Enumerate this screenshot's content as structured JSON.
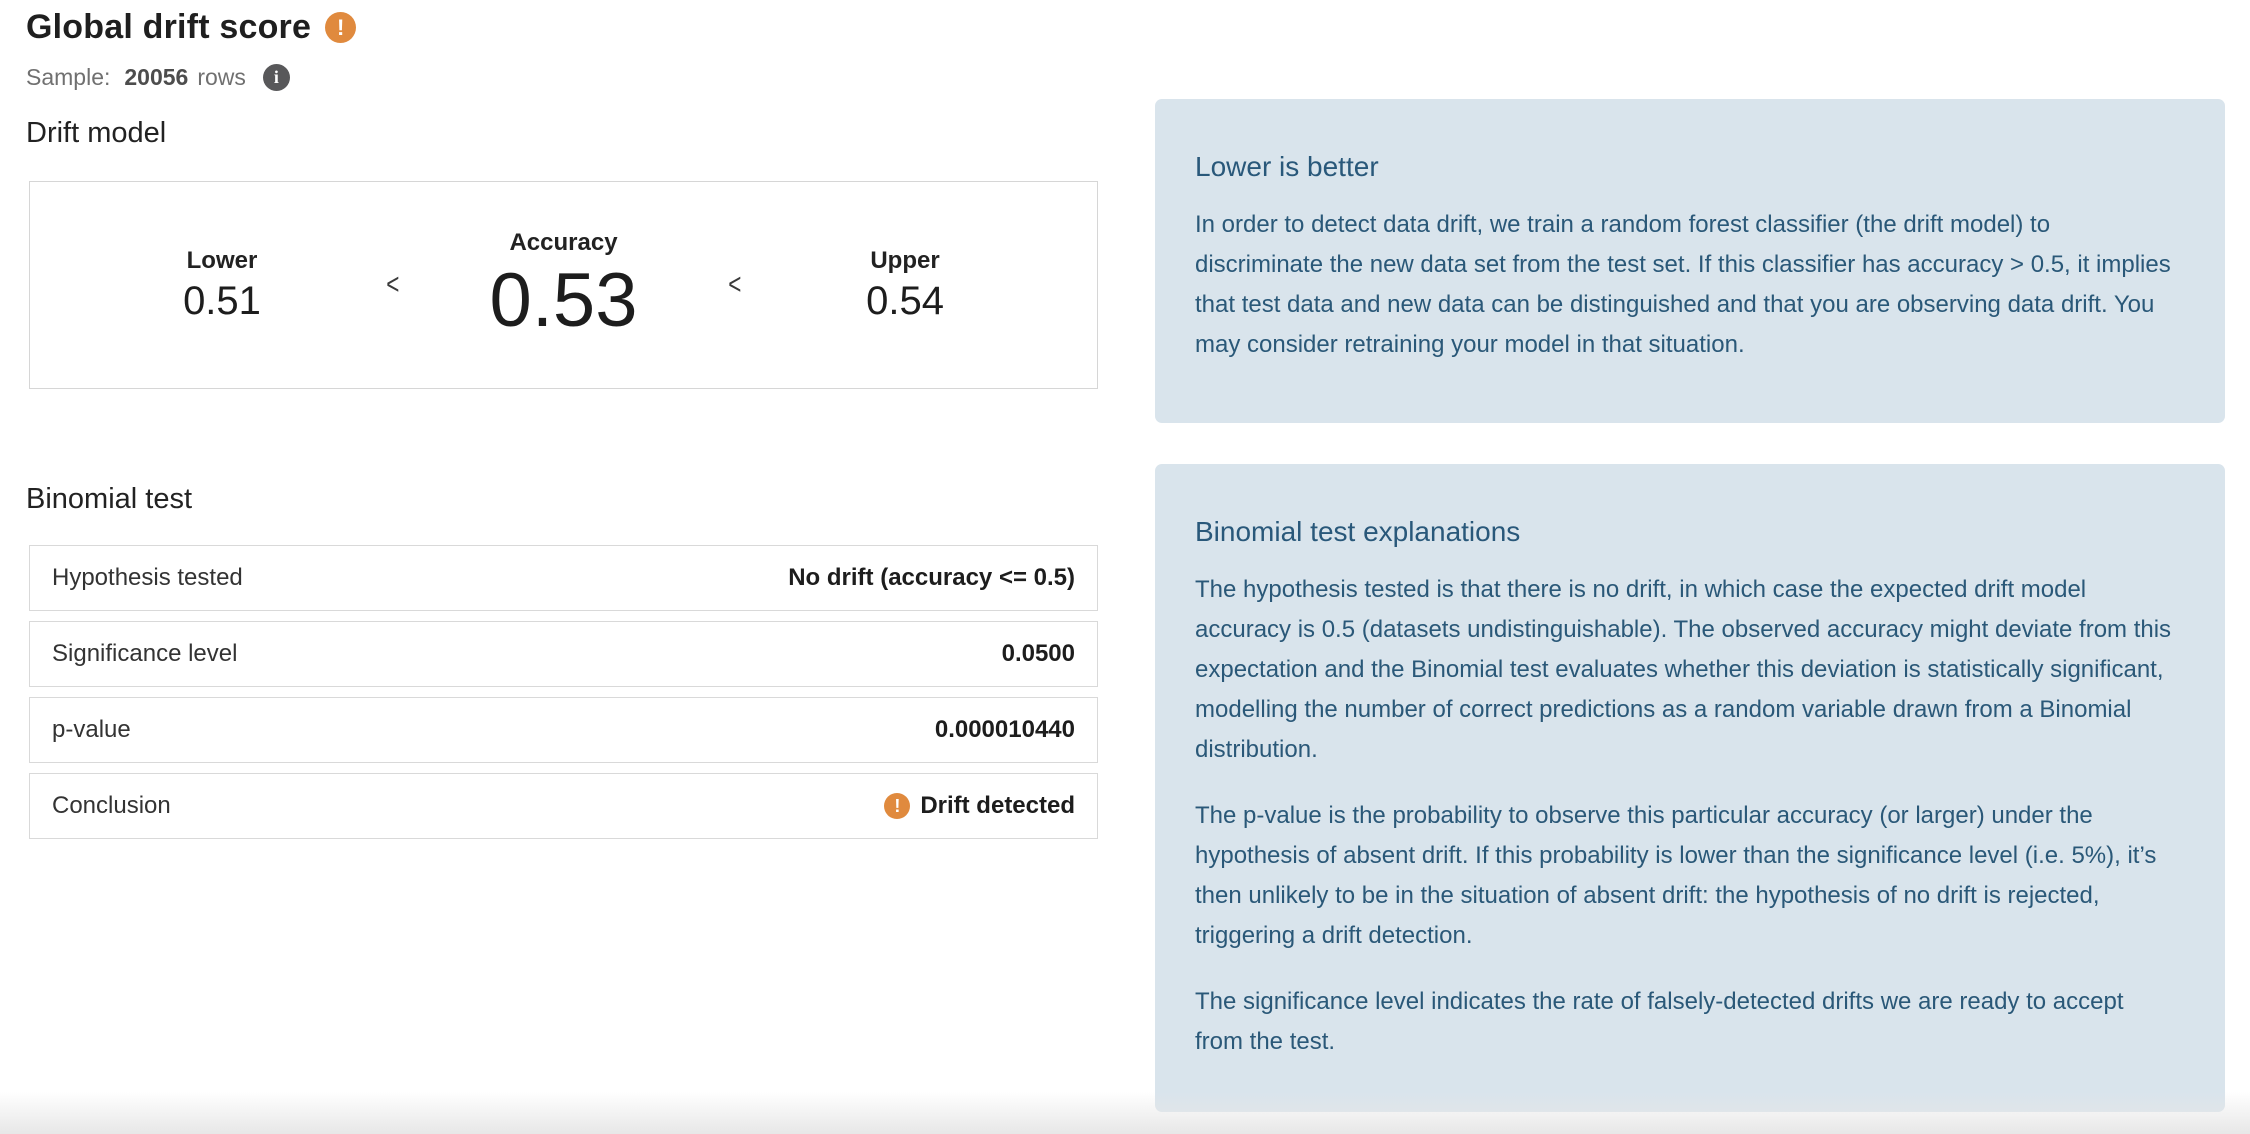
{
  "header": {
    "title": "Global drift score",
    "sample_label": "Sample:",
    "sample_count": "20056",
    "sample_suffix": "rows",
    "warning_icon_glyph": "!",
    "info_icon_glyph": "i"
  },
  "drift_model": {
    "heading": "Drift model",
    "lower_label": "Lower",
    "lower_value": "0.51",
    "accuracy_label": "Accuracy",
    "accuracy_value": "0.53",
    "upper_label": "Upper",
    "upper_value": "0.54",
    "chevron": "<"
  },
  "binomial_test": {
    "heading": "Binomial test",
    "rows": [
      {
        "label": "Hypothesis tested",
        "value": "No drift (accuracy <= 0.5)"
      },
      {
        "label": "Significance level",
        "value": "0.0500"
      },
      {
        "label": "p-value",
        "value": "0.000010440"
      },
      {
        "label": "Conclusion",
        "value": "Drift detected"
      }
    ]
  },
  "panels": [
    {
      "heading": "Lower is better",
      "paragraphs": [
        "In order to detect data drift, we train a random forest classifier (the drift model) to discriminate the new data set from the test set. If this classifier has accuracy > 0.5, it implies that test data and new data can be distinguished and that you are observing data drift. You may consider retraining your model in that situation."
      ]
    },
    {
      "heading": "Binomial test explanations",
      "paragraphs": [
        "The hypothesis tested is that there is no drift, in which case the expected drift model accuracy is 0.5 (datasets undistinguishable). The observed accuracy might deviate from this expectation and the Binomial test evaluates whether this deviation is statistically significant, modelling the number of correct predictions as a random variable drawn from a Binomial distribution.",
        "The p-value is the probability to observe this particular accuracy (or larger) under the hypothesis of absent drift. If this probability is lower than the significance level (i.e. 5%), it’s then unlikely to be in the situation of absent drift: the hypothesis of no drift is rejected, triggering a drift detection.",
        "The significance level indicates the rate of falsely-detected drifts we are ready to accept from the test."
      ]
    }
  ],
  "colors": {
    "warning_orange": "#e08a3e",
    "info_gray": "#58585a",
    "panel_background": "#d9e4ec",
    "panel_text": "#2a5878"
  }
}
